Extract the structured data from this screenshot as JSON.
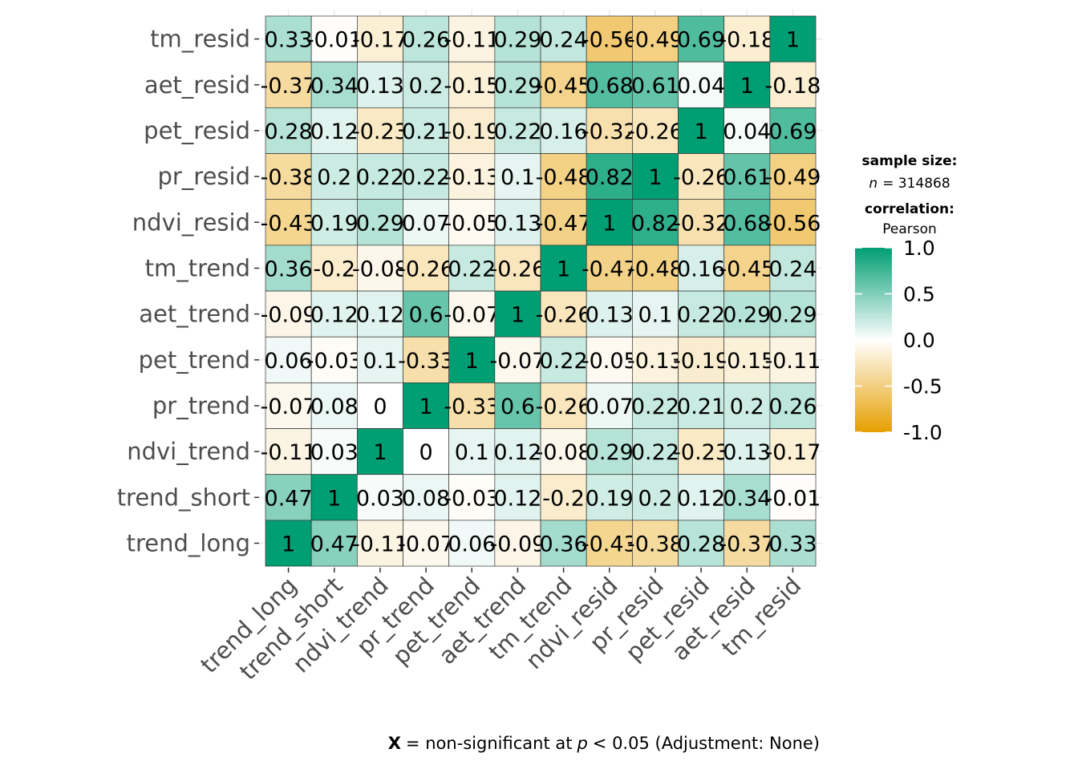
{
  "chart_data": {
    "type": "heatmap",
    "variables": [
      "trend_long",
      "trend_short",
      "ndvi_trend",
      "pr_trend",
      "pet_trend",
      "aet_trend",
      "tm_trend",
      "ndvi_resid",
      "pr_resid",
      "pet_resid",
      "aet_resid",
      "tm_resid"
    ],
    "matrix": [
      [
        "1",
        "0.47",
        "-0.11",
        "-0.07",
        "0.06",
        "-0.09",
        "0.36",
        "-0.43",
        "-0.38",
        "0.28",
        "-0.37",
        "0.33"
      ],
      [
        "0.47",
        "1",
        "0.03",
        "0.08",
        "-0.03",
        "0.12",
        "-0.2",
        "0.19",
        "0.2",
        "0.12",
        "0.34",
        "-0.01"
      ],
      [
        "-0.11",
        "0.03",
        "1",
        "0",
        "0.1",
        "0.12",
        "-0.08",
        "0.29",
        "0.22",
        "-0.23",
        "0.13",
        "-0.17"
      ],
      [
        "-0.07",
        "0.08",
        "0",
        "1",
        "-0.33",
        "0.6",
        "-0.26",
        "0.07",
        "0.22",
        "0.21",
        "0.2",
        "0.26"
      ],
      [
        "0.06",
        "-0.03",
        "0.1",
        "-0.33",
        "1",
        "-0.07",
        "0.22",
        "-0.05",
        "-0.13",
        "-0.19",
        "-0.15",
        "-0.11"
      ],
      [
        "-0.09",
        "0.12",
        "0.12",
        "0.6",
        "-0.07",
        "1",
        "-0.26",
        "0.13",
        "0.1",
        "0.22",
        "0.29",
        "0.29"
      ],
      [
        "0.36",
        "-0.2",
        "-0.08",
        "-0.26",
        "0.22",
        "-0.26",
        "1",
        "-0.47",
        "-0.48",
        "0.16",
        "-0.45",
        "0.24"
      ],
      [
        "-0.43",
        "0.19",
        "0.29",
        "0.07",
        "-0.05",
        "0.13",
        "-0.47",
        "1",
        "0.82",
        "-0.32",
        "0.68",
        "-0.56"
      ],
      [
        "-0.38",
        "0.2",
        "0.22",
        "0.22",
        "-0.13",
        "0.1",
        "-0.48",
        "0.82",
        "1",
        "-0.26",
        "0.61",
        "-0.49"
      ],
      [
        "0.28",
        "0.12",
        "-0.23",
        "0.21",
        "-0.19",
        "0.22",
        "0.16",
        "-0.32",
        "-0.26",
        "1",
        "0.04",
        "0.69"
      ],
      [
        "-0.37",
        "0.34",
        "0.13",
        "0.2",
        "-0.15",
        "0.29",
        "-0.45",
        "0.68",
        "0.61",
        "0.04",
        "1",
        "-0.18"
      ],
      [
        "0.33",
        "-0.01",
        "-0.17",
        "0.26",
        "-0.11",
        "0.29",
        "0.24",
        "-0.56",
        "-0.49",
        "0.69",
        "-0.18",
        "1"
      ]
    ],
    "color_scale": {
      "low": "#E69F00",
      "mid": "#FFFFFF",
      "high": "#009E73",
      "limits": [
        -1,
        1
      ]
    },
    "legend": {
      "sample_title": "sample size:",
      "n_label": "n",
      "n_value": "= 314868",
      "corr_title": "correlation:",
      "corr_method": "Pearson",
      "ticks": [
        "1.0",
        "0.5",
        "0.0",
        "-0.5",
        "-1.0"
      ],
      "placement": "right"
    },
    "caption": {
      "bold": "X",
      "text1": "= non-significant at",
      "italic": "p",
      "text2": "< 0.05 (Adjustment: None)"
    }
  }
}
